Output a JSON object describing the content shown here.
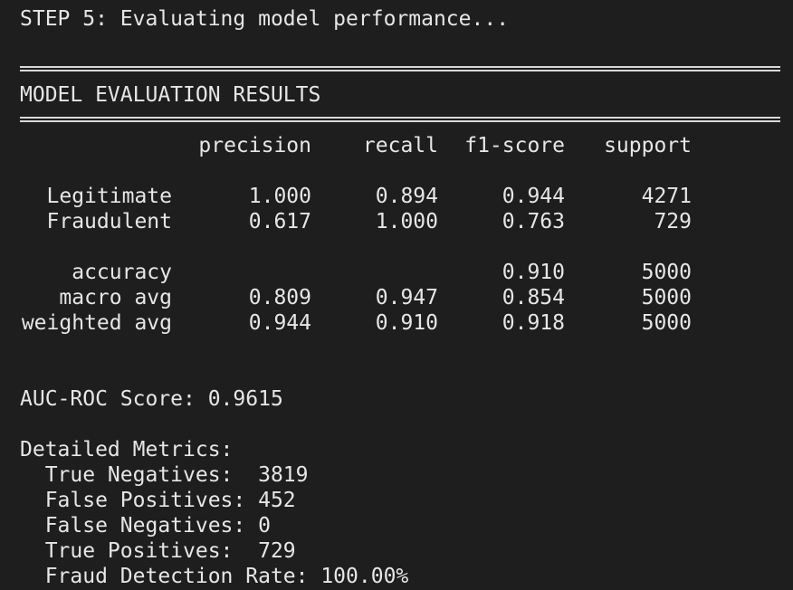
{
  "terminal": {
    "step_line": "STEP 5: Evaluating model performance...",
    "results_title": "MODEL EVALUATION RESULTS",
    "report": {
      "headers": [
        "precision",
        "recall",
        "f1-score",
        "support"
      ],
      "rows": [
        {
          "label": "Legitimate",
          "precision": "1.000",
          "recall": "0.894",
          "f1": "0.944",
          "support": "4271"
        },
        {
          "label": "Fraudulent",
          "precision": "0.617",
          "recall": "1.000",
          "f1": "0.763",
          "support": "729"
        },
        {
          "label": "accuracy",
          "precision": "",
          "recall": "",
          "f1": "0.910",
          "support": "5000"
        },
        {
          "label": "macro avg",
          "precision": "0.809",
          "recall": "0.947",
          "f1": "0.854",
          "support": "5000"
        },
        {
          "label": "weighted avg",
          "precision": "0.944",
          "recall": "0.910",
          "f1": "0.918",
          "support": "5000"
        }
      ]
    },
    "auc_line": "AUC-ROC Score: 0.9615",
    "detailed_title": "Detailed Metrics:",
    "metrics": [
      "  True Negatives:  3819",
      "  False Positives: 452",
      "  False Negatives: 0",
      "  True Positives:  729",
      "  Fraud Detection Rate: 100.00%"
    ]
  }
}
